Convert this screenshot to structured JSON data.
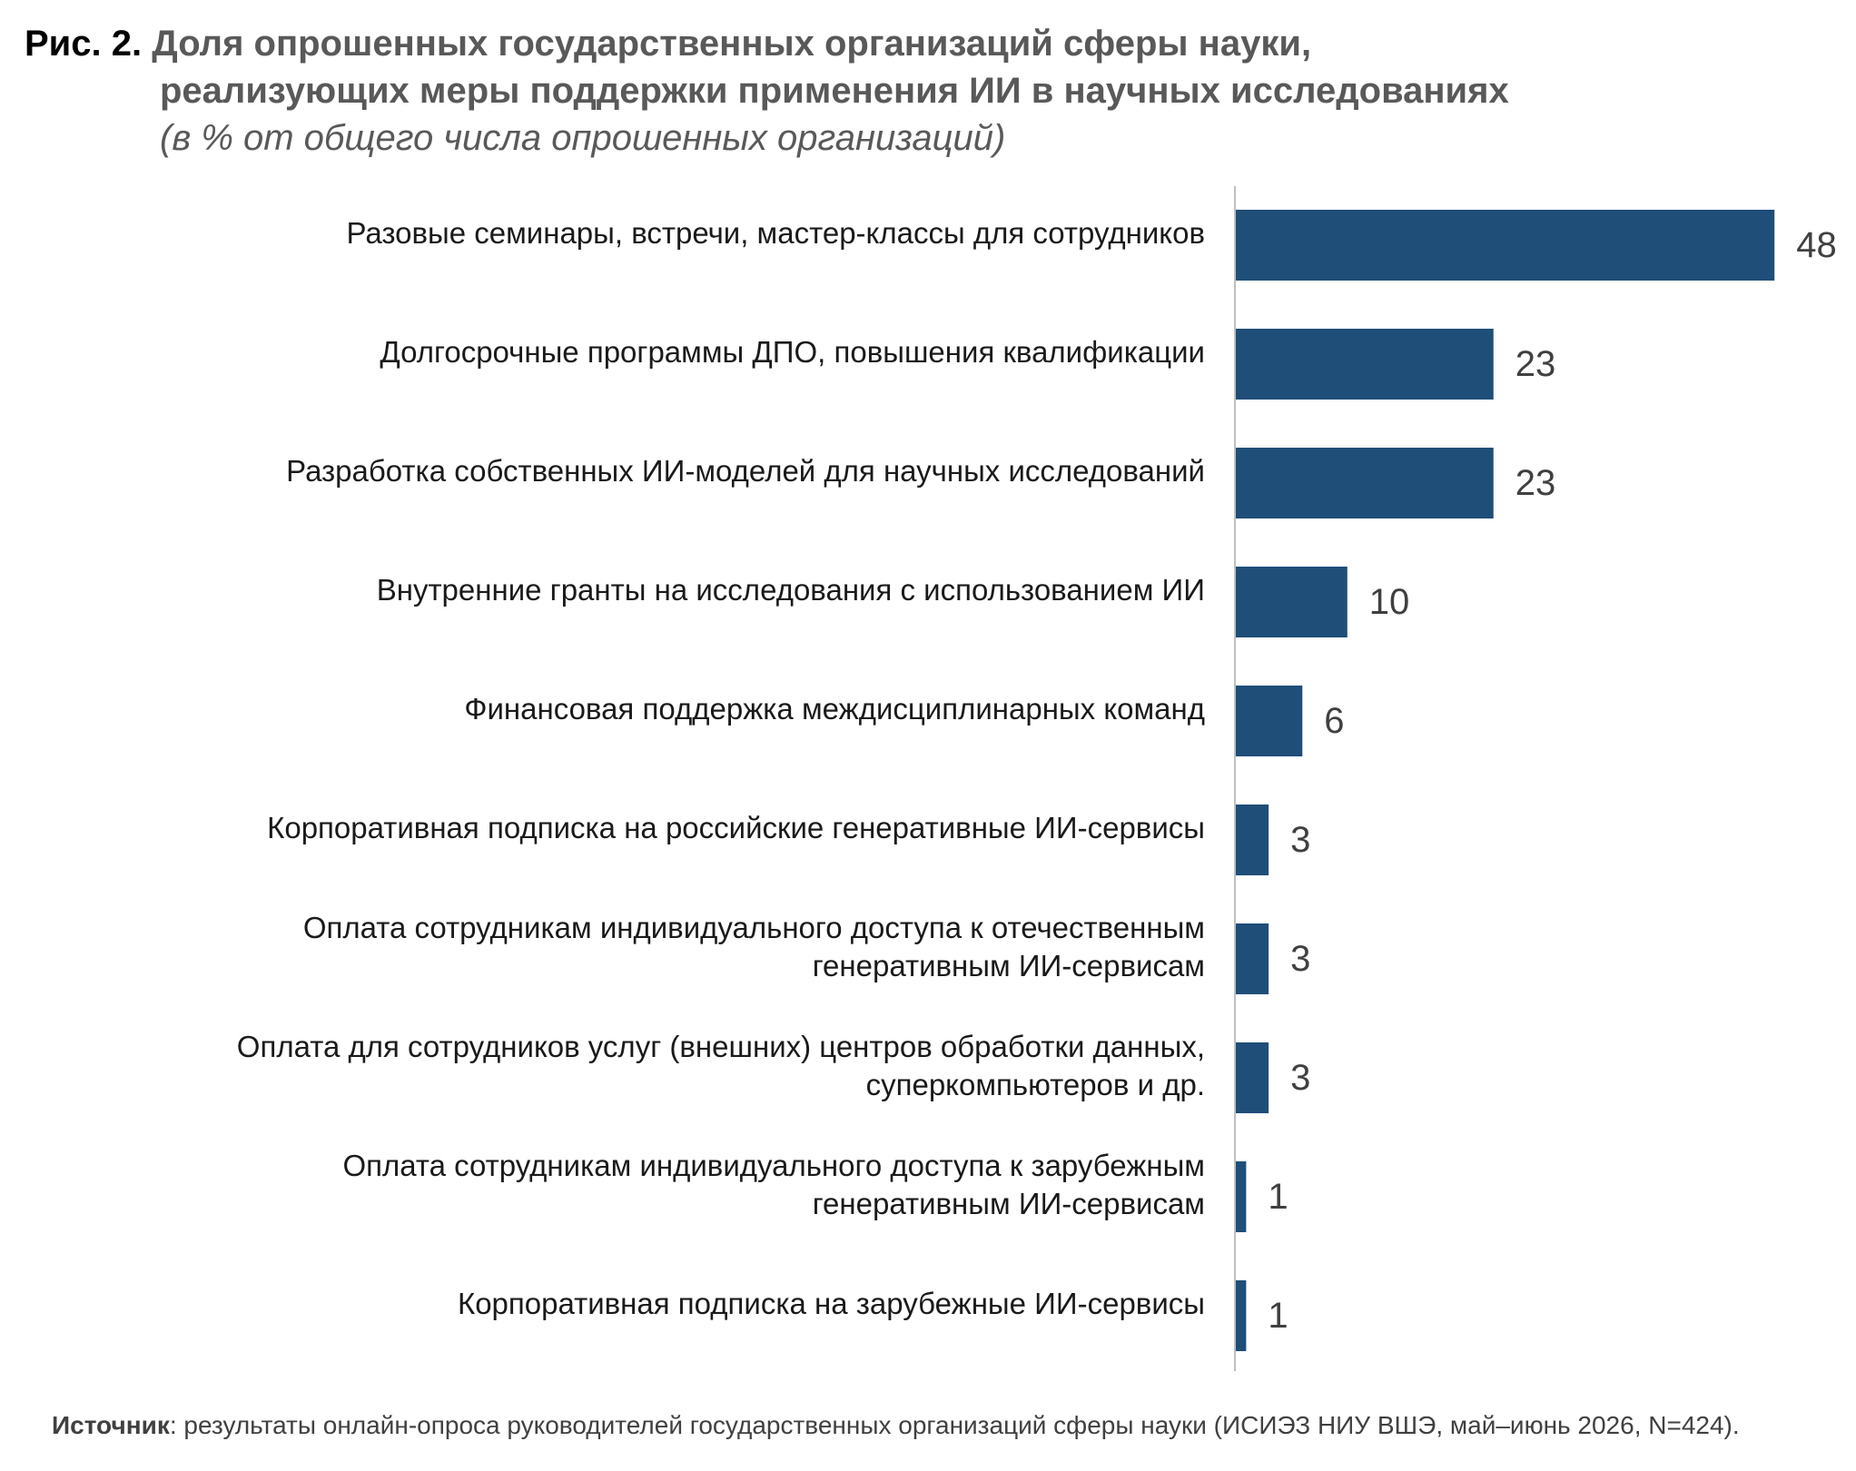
{
  "figure": {
    "label": "Рис. 2.",
    "title_line1": "Доля опрошенных государственных организаций сферы науки,",
    "title_line2": "реализующих меры поддержки применения ИИ в научных исследованиях",
    "subtitle": "(в % от общего числа опрошенных организаций)"
  },
  "source": {
    "label": "Источник",
    "text": ": результаты онлайн-опроса руководителей государственных организаций сферы науки (ИСИЭЗ НИУ ВШЭ, май–июнь 2026, N=424)."
  },
  "colors": {
    "bar": "#1F4E79",
    "axis": "#BFBFBF",
    "label_text": "#1A1A1A",
    "value_text": "#404040"
  },
  "chart_data": {
    "type": "bar",
    "orientation": "horizontal",
    "categories": [
      [
        "Разовые семинары, встречи, мастер-классы для сотрудников"
      ],
      [
        "Долгосрочные программы ДПО, повышения квалификации"
      ],
      [
        "Разработка собственных ИИ-моделей для научных исследований"
      ],
      [
        "Внутренние гранты на исследования с использованием ИИ"
      ],
      [
        "Финансовая поддержка междисциплинарных команд"
      ],
      [
        "Корпоративная подписка на российские генеративные ИИ-сервисы"
      ],
      [
        "Оплата сотрудникам индивидуального доступа к отечественным",
        "генеративным ИИ-сервисам"
      ],
      [
        "Оплата для сотрудников услуг (внешних) центров обработки данных,",
        "суперкомпьютеров и др."
      ],
      [
        "Оплата сотрудникам индивидуального доступа к зарубежным",
        "генеративным ИИ-сервисам"
      ],
      [
        "Корпоративная подписка на зарубежные ИИ-сервисы"
      ]
    ],
    "values": [
      48,
      23,
      23,
      10,
      6,
      3,
      3,
      3,
      1,
      1
    ],
    "xlim": [
      0,
      50
    ],
    "grid": false,
    "legend": "none",
    "data_labels": true
  }
}
